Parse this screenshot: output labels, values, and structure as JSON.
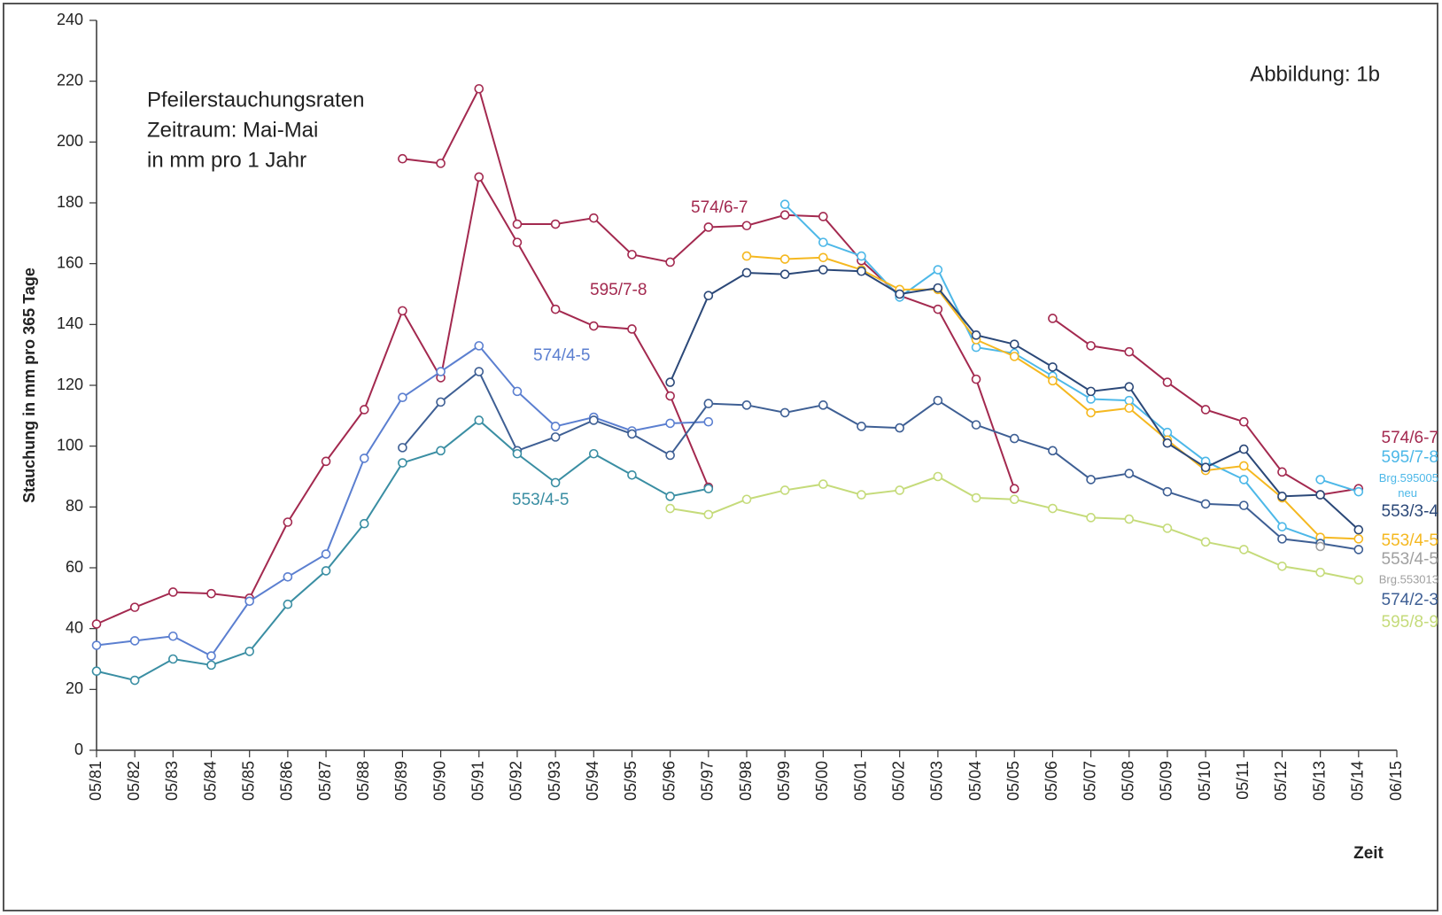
{
  "chart_data": {
    "type": "line",
    "title_lines": [
      "Pfeilerstauchungsraten",
      "Zeitraum: Mai-Mai",
      "in mm pro 1 Jahr"
    ],
    "figure_label": "Abbildung:  1b",
    "y_label": "Stauchung in mm pro 365 Tage",
    "x_label": "Zeit",
    "categories": [
      "05/81",
      "05/82",
      "05/83",
      "05/84",
      "05/85",
      "05/86",
      "05/87",
      "05/88",
      "05/89",
      "05/90",
      "05/91",
      "05/92",
      "05/93",
      "05/94",
      "05/95",
      "05/96",
      "05/97",
      "05/98",
      "05/99",
      "05/00",
      "05/01",
      "05/02",
      "05/03",
      "05/04",
      "05/05",
      "05/06",
      "05/07",
      "05/08",
      "05/09",
      "05/10",
      "05/11",
      "05/12",
      "05/13",
      "05/14",
      "06/15"
    ],
    "ylim": [
      0,
      240
    ],
    "yticks": [
      0,
      20,
      40,
      60,
      80,
      100,
      120,
      140,
      160,
      180,
      200,
      220,
      240
    ],
    "annotations": [
      {
        "text": "Brg.553013",
        "color": "#a0a0a0"
      }
    ],
    "series": [
      {
        "name": "574/6-7",
        "color": "#a3294f",
        "values": [
          null,
          null,
          null,
          null,
          null,
          null,
          null,
          null,
          194.5,
          193,
          217.5,
          173,
          173,
          175,
          163,
          160.5,
          172,
          172.5,
          176,
          175.5,
          161,
          149.5,
          145,
          122,
          86,
          null,
          null,
          null,
          null,
          null,
          null,
          null,
          null,
          null,
          null
        ]
      },
      {
        "name": "595/7-8",
        "color": "#a3294f",
        "values": [
          41.5,
          47,
          52,
          51.5,
          50,
          75,
          95,
          112,
          144.5,
          122.5,
          188.5,
          167,
          145,
          139.5,
          138.5,
          116.5,
          86.5,
          null,
          null,
          null,
          null,
          null,
          null,
          null,
          null,
          null,
          null,
          null,
          null,
          null,
          null,
          null,
          null,
          null,
          null
        ]
      },
      {
        "name": "574/6-7",
        "color": "#a3294f",
        "values": [
          null,
          null,
          null,
          null,
          null,
          null,
          null,
          null,
          null,
          null,
          null,
          null,
          null,
          null,
          null,
          null,
          null,
          null,
          null,
          null,
          null,
          null,
          null,
          null,
          null,
          142,
          133,
          131,
          121,
          112,
          108,
          91.5,
          84,
          86,
          null
        ]
      },
      {
        "name": "595/7-8",
        "color": "#4db8e8",
        "values": [
          null,
          null,
          null,
          null,
          null,
          null,
          null,
          null,
          null,
          null,
          null,
          null,
          null,
          null,
          null,
          null,
          null,
          null,
          179.5,
          167,
          162.5,
          149,
          158,
          132.5,
          130.5,
          123,
          115.5,
          115,
          104.5,
          95,
          89,
          73.5,
          69,
          null,
          null
        ]
      },
      {
        "name": "Brg.595005 neu",
        "color": "#4db8e8",
        "values": [
          null,
          null,
          null,
          null,
          null,
          null,
          null,
          null,
          null,
          null,
          null,
          null,
          null,
          null,
          null,
          null,
          null,
          null,
          null,
          null,
          null,
          null,
          null,
          null,
          null,
          null,
          null,
          null,
          null,
          null,
          null,
          null,
          89,
          85,
          null
        ]
      },
      {
        "name": "553/4-5",
        "color": "#f5b820",
        "values": [
          null,
          null,
          null,
          null,
          null,
          null,
          null,
          null,
          null,
          null,
          null,
          null,
          null,
          null,
          null,
          null,
          null,
          162.5,
          161.5,
          162,
          158,
          151.5,
          151.5,
          135,
          129.5,
          121.5,
          111,
          112.5,
          102,
          92,
          93.5,
          83,
          70,
          69.5,
          null
        ]
      },
      {
        "name": "553/3-4",
        "color": "#2b4878",
        "values": [
          null,
          null,
          null,
          null,
          null,
          null,
          null,
          null,
          null,
          null,
          null,
          null,
          null,
          null,
          null,
          121,
          149.5,
          157,
          156.5,
          158,
          157.5,
          150,
          152,
          136.5,
          133.5,
          126,
          118,
          119.5,
          101,
          93,
          99,
          83.5,
          84,
          72.5,
          null
        ]
      },
      {
        "name": "574/4-5",
        "color": "#5b7fd0",
        "values": [
          34.5,
          36,
          37.5,
          31,
          49,
          57,
          64.5,
          96,
          116,
          124.5,
          133,
          118,
          106.5,
          109.5,
          105,
          107.5,
          108,
          null,
          null,
          null,
          null,
          null,
          null,
          null,
          null,
          null,
          null,
          null,
          null,
          null,
          null,
          null,
          null,
          null,
          null
        ]
      },
      {
        "name": "574/2-3",
        "color": "#3e5f94",
        "values": [
          null,
          null,
          null,
          null,
          null,
          null,
          null,
          null,
          99.5,
          114.5,
          124.5,
          98.5,
          103,
          108.5,
          104,
          97,
          114,
          113.5,
          111,
          113.5,
          106.5,
          106,
          115,
          107,
          102.5,
          98.5,
          89,
          91,
          85,
          81,
          80.5,
          69.5,
          68,
          66,
          null
        ]
      },
      {
        "name": "553/4-5",
        "color": "#3a8ea3",
        "values": [
          26,
          23,
          30,
          28,
          32.5,
          48,
          59,
          74.5,
          94.5,
          98.5,
          108.5,
          97.5,
          88,
          97.5,
          90.5,
          83.5,
          86,
          null,
          null,
          null,
          null,
          null,
          null,
          null,
          null,
          null,
          null,
          null,
          null,
          null,
          null,
          null,
          null,
          null,
          null
        ]
      },
      {
        "name": "553/4-5",
        "color": "#a0a0a0",
        "values": [
          null,
          null,
          null,
          null,
          null,
          null,
          null,
          null,
          null,
          null,
          null,
          null,
          null,
          null,
          null,
          null,
          null,
          null,
          null,
          null,
          null,
          null,
          null,
          null,
          null,
          null,
          null,
          null,
          null,
          null,
          null,
          null,
          67,
          null,
          null
        ]
      },
      {
        "name": "595/8-9",
        "color": "#c5db7a",
        "values": [
          null,
          null,
          null,
          null,
          null,
          null,
          null,
          null,
          null,
          null,
          null,
          null,
          null,
          null,
          null,
          79.5,
          77.5,
          82.5,
          85.5,
          87.5,
          84,
          85.5,
          90,
          83,
          82.5,
          79.5,
          76.5,
          76,
          73,
          68.5,
          66,
          60.5,
          58.5,
          56,
          null
        ]
      }
    ]
  }
}
